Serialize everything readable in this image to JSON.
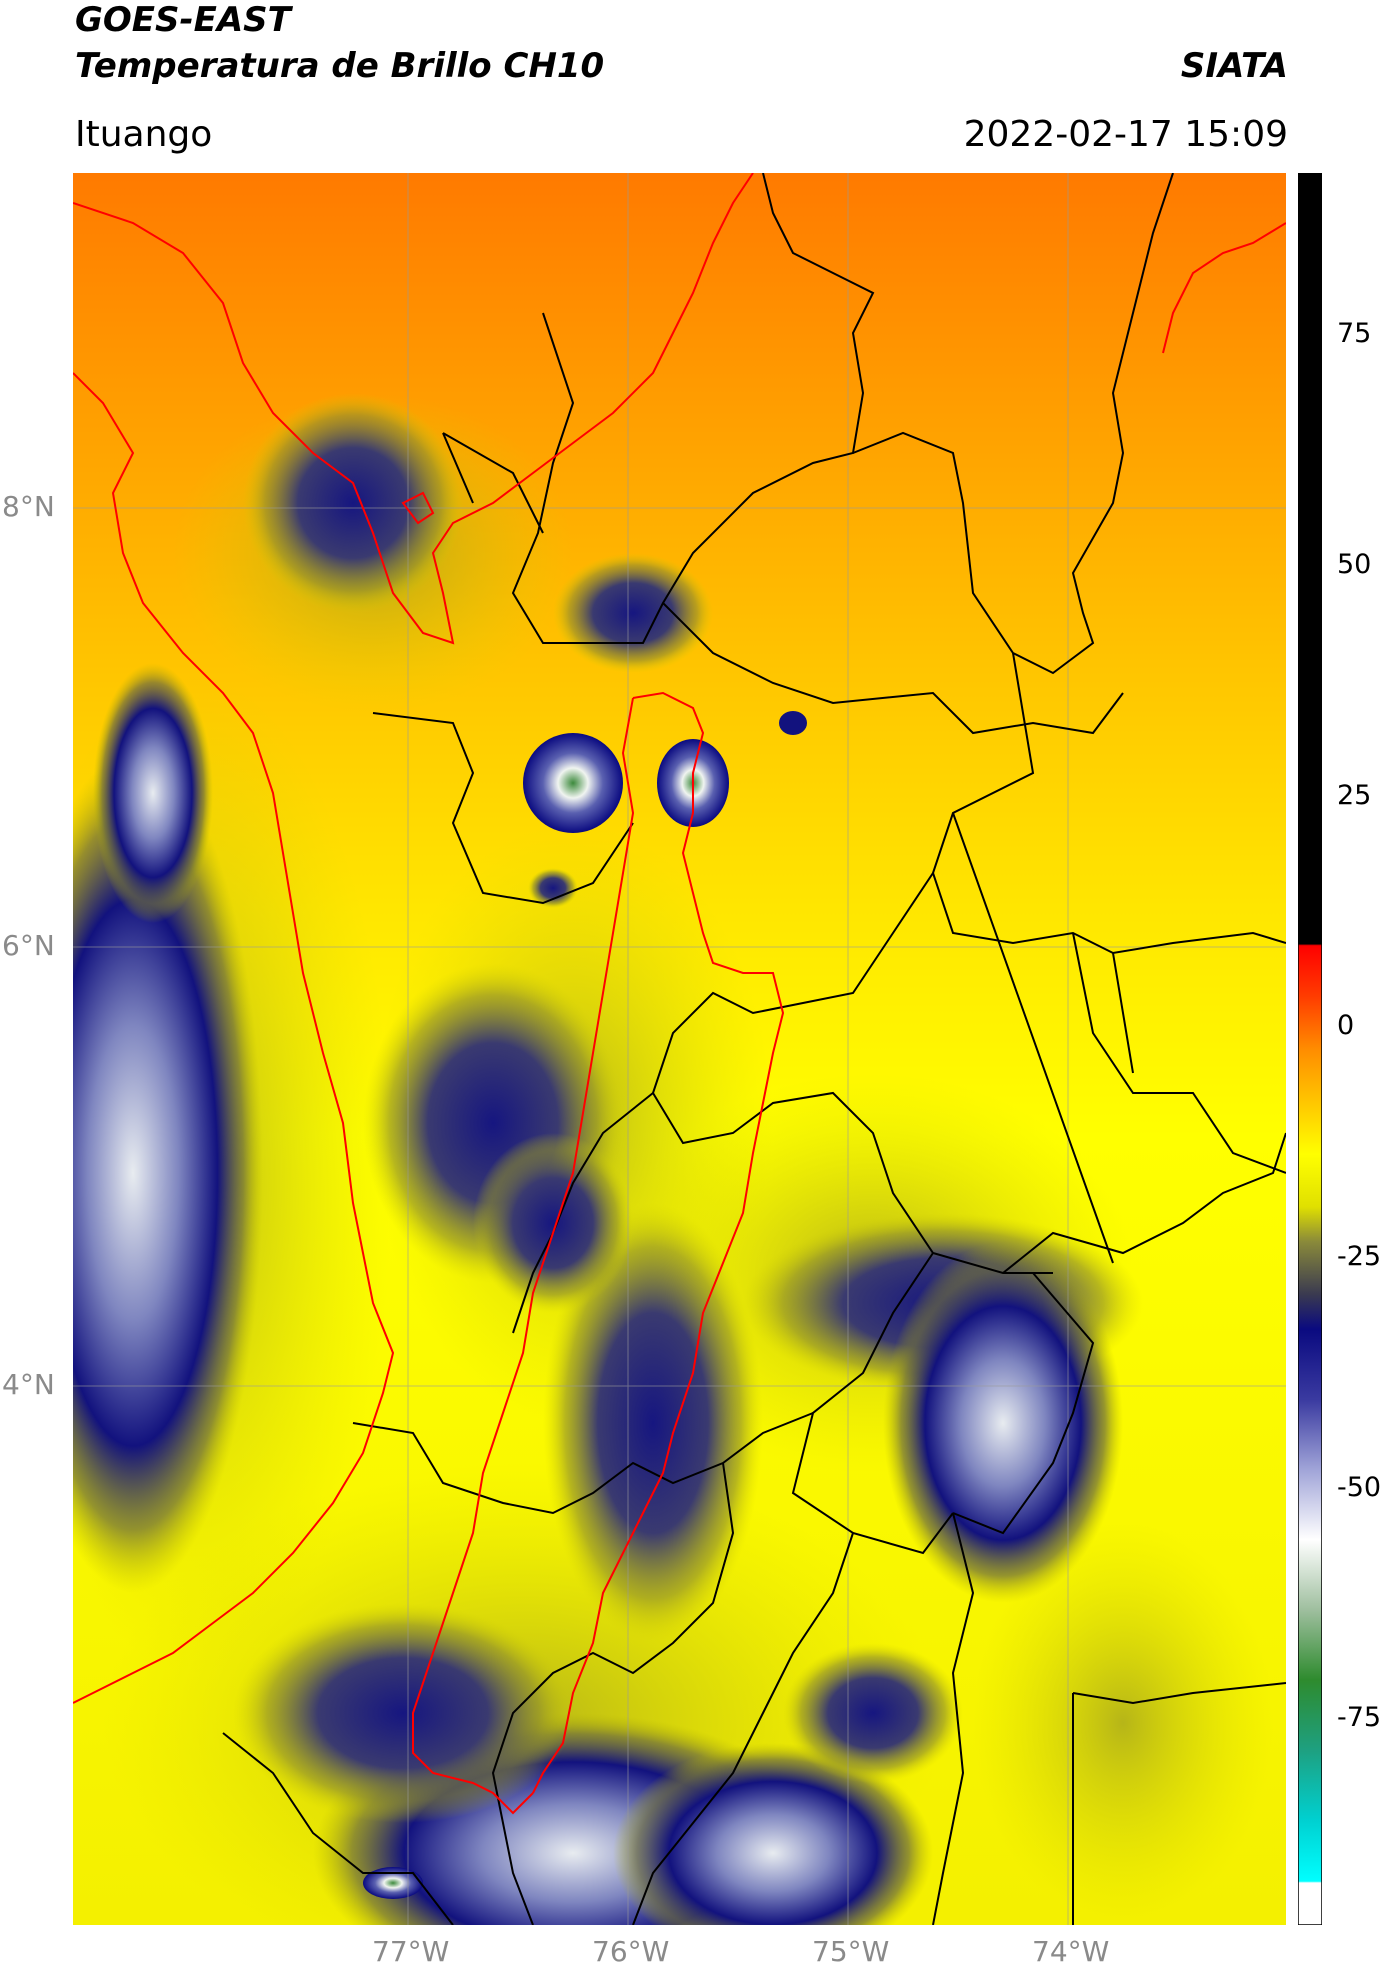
{
  "header": {
    "satellite": "GOES-EAST",
    "product": "Temperatura de Brillo CH10",
    "org": "SIATA",
    "place": "Ituango",
    "datetime": "2022-02-17 15:09"
  },
  "axes": {
    "lat_labels": [
      "8°N",
      "6°N",
      "4°N"
    ],
    "lon_labels": [
      "77°W",
      "76°W",
      "75°W",
      "74°W"
    ]
  },
  "colorbar": {
    "ticks": [
      "75",
      "50",
      "25",
      "0",
      "-25",
      "-50",
      "-75"
    ],
    "colors": {
      "black": "#000000",
      "red": "#ff0000",
      "orange": "#ff8c00",
      "yellow": "#ffff00",
      "olive": "#6e6e3c",
      "navy": "#0a0a80",
      "white": "#ffffff",
      "green": "#2e8b2e",
      "cyan": "#00e6e6"
    }
  }
}
